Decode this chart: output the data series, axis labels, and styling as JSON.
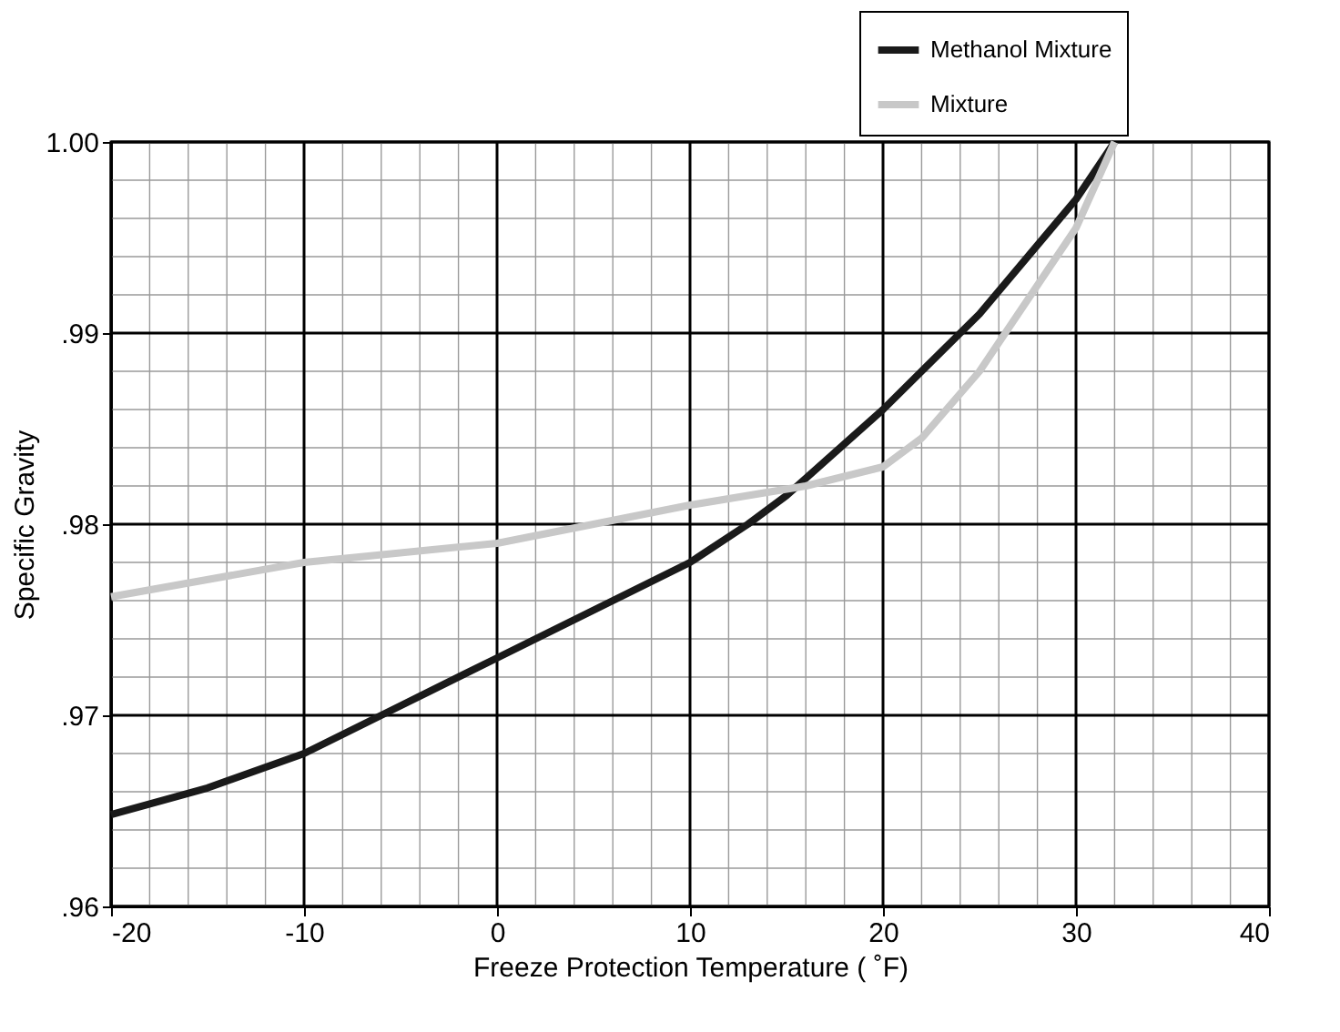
{
  "chart_data": {
    "type": "line",
    "xlabel": "Freeze Protection Temperature ( ˚F)",
    "ylabel": "Specific Gravity",
    "xlim": [
      -20,
      40
    ],
    "xticks": [
      -20,
      -10,
      0,
      10,
      20,
      30,
      40
    ],
    "ylim": [
      0.96,
      1.0
    ],
    "yticks": [
      {
        "value": 0.96,
        "label": ".96"
      },
      {
        "value": 0.97,
        "label": ".97"
      },
      {
        "value": 0.98,
        "label": ".98"
      },
      {
        "value": 0.99,
        "label": ".99"
      },
      {
        "value": 1.0,
        "label": "1.00"
      }
    ],
    "grid": true,
    "legend": "top right",
    "line_style": "solid",
    "marker": "none",
    "series": [
      {
        "name": "Methanol Mixture",
        "color": "#1a1a1a",
        "x": [
          -20,
          -15,
          -10,
          -5,
          0,
          5,
          10,
          13,
          15,
          20,
          25,
          30,
          32
        ],
        "values": [
          0.9648,
          0.9662,
          0.968,
          0.9705,
          0.973,
          0.9755,
          0.978,
          0.98,
          0.9815,
          0.986,
          0.991,
          0.997,
          1.0
        ]
      },
      {
        "name": "Mixture",
        "color": "#c8c8c8",
        "x": [
          -20,
          -10,
          0,
          10,
          16,
          20,
          22,
          25,
          28,
          30,
          32
        ],
        "values": [
          0.9762,
          0.978,
          0.979,
          0.981,
          0.982,
          0.983,
          0.9845,
          0.988,
          0.9925,
          0.9955,
          1.0
        ]
      }
    ]
  }
}
